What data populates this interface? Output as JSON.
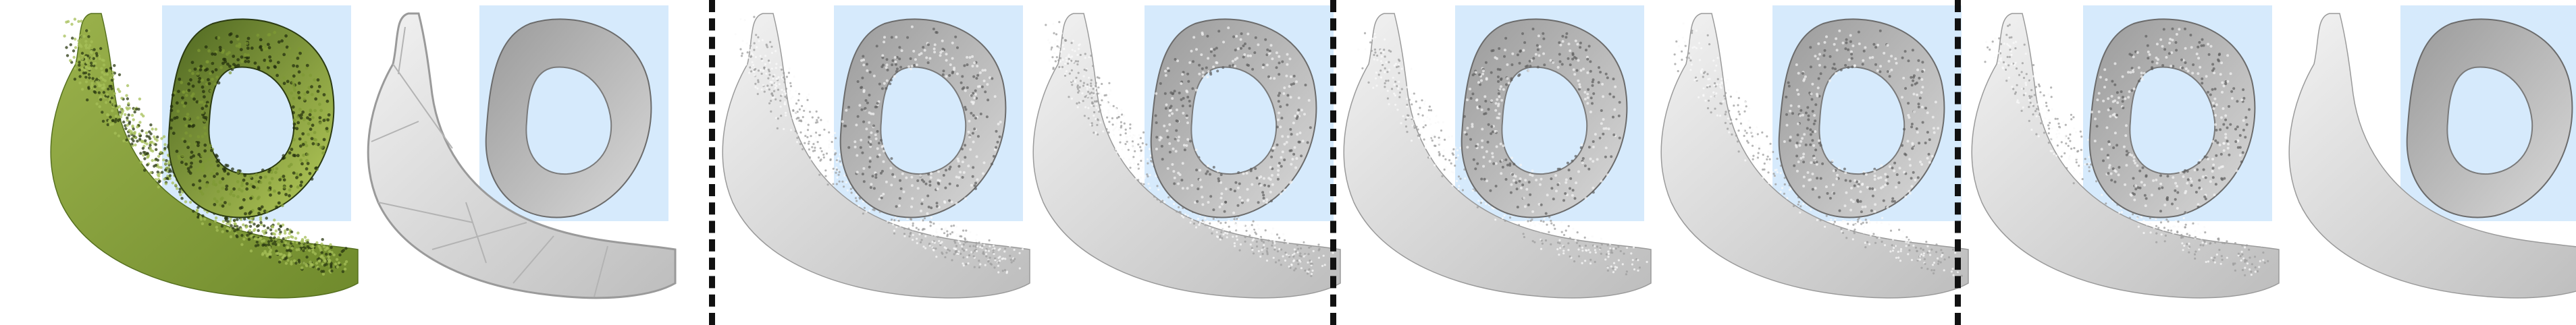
{
  "figure": {
    "panel_count": 8,
    "divider_count": 3,
    "colors": {
      "inset_background": "#d6eafc",
      "point_cloud": "#7e9a3b",
      "point_cloud_dark": "#2b3a12",
      "mesh_light": "#e6e6e6",
      "mesh_dark": "#8a8a8a",
      "divider": "#111111"
    },
    "panels": [
      {
        "name": "point-cloud-input",
        "icon": "banana-point-cloud"
      },
      {
        "name": "coarse-polygon-mesh",
        "icon": "banana-low-poly-mesh"
      },
      {
        "name": "noisy-reconstruction-1",
        "icon": "banana-noisy-mesh"
      },
      {
        "name": "noisy-reconstruction-2",
        "icon": "banana-noisy-mesh"
      },
      {
        "name": "reconstruction-3",
        "icon": "banana-rough-mesh"
      },
      {
        "name": "reconstruction-4",
        "icon": "banana-rough-mesh"
      },
      {
        "name": "reconstruction-5",
        "icon": "banana-rough-mesh"
      },
      {
        "name": "smooth-reconstruction",
        "icon": "banana-smooth-mesh"
      }
    ]
  }
}
